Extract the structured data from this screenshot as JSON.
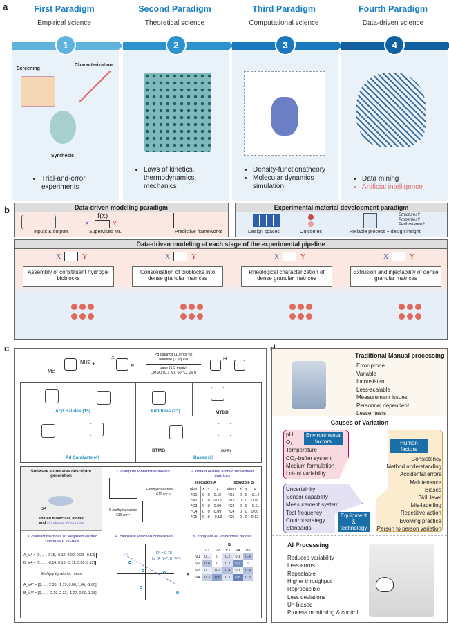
{
  "panel_a": {
    "label": "a",
    "paradigms": [
      {
        "num": "1",
        "title": "First Paradigm",
        "subtitle": "Empirical science",
        "bullets": [
          "Trial-and-error experiments"
        ],
        "illustration_labels": [
          "Screening",
          "Characterization",
          "Synthesis"
        ]
      },
      {
        "num": "2",
        "title": "Second Paradigm",
        "subtitle": "Theoretical science",
        "bullets": [
          "Laws of kinetics, thermodynamics, mechanics"
        ]
      },
      {
        "num": "3",
        "title": "Third Paradigm",
        "subtitle": "Computational science",
        "bullets": [
          "Density-functionatheory",
          "Molecular dynamics simulation"
        ]
      },
      {
        "num": "4",
        "title": "Fourth Paradigm",
        "subtitle": "Data-driven science",
        "bullets": [
          "Data mining",
          "Artificial intelligence"
        ]
      }
    ],
    "colors": {
      "band": [
        "#5fb3dd",
        "#2c93cf",
        "#1a78bd",
        "#11609f"
      ],
      "highlight": "#e07070"
    }
  },
  "panel_b": {
    "label": "b",
    "modeling": {
      "title": "Data-driven modeling paradigm",
      "fx": "f(x)",
      "x": "X",
      "y": "Y",
      "captions": [
        "Inputs & outputs",
        "Supervised ML",
        "Predictive frameworks"
      ]
    },
    "experimental": {
      "title": "Experimental material development paradigm",
      "captions": [
        "Design spaces",
        "Outcomes",
        "Reliable process + design insight"
      ],
      "questions": [
        "Structures?",
        "Properties?",
        "Performance?"
      ]
    },
    "pipeline": {
      "title": "Data-driven modeling at each stage of the experimental pipeline",
      "x": "X",
      "y": "Y",
      "stages": [
        "Assembly of constituent hydrogel bioblocks",
        "Consolidation of bioblocks into dense granular matrices",
        "Rheological characterization of dense granular matrices",
        "Extrusion and injectability of dense granular matrices"
      ]
    }
  },
  "panel_c": {
    "label": "c",
    "reaction": {
      "reagent1": "NH2",
      "reagent1_sub": "Me",
      "plus": "+",
      "reagent2": "X",
      "reagent2_r": "R",
      "conditions_top": [
        "Pd catalyst (10 mol %)",
        "additive (1 equiv)"
      ],
      "conditions_bottom": [
        "base (1.5 equiv)",
        "DMSO (0.1 M), 60 °C, 16 h"
      ],
      "product": "H"
    },
    "categories": [
      "Aryl Halides (15)",
      "Additives (23)",
      "MTBD",
      "Pd Catalysts (4)",
      "BTMG",
      "P2Et",
      "Bases (3)"
    ],
    "descriptor": {
      "title": "Software automates descriptor generation",
      "caption1": "shared molecular, atomic",
      "caption2": "and",
      "caption3": "vibrational descriptors",
      "sa": "SA"
    },
    "step1": {
      "title": "1. compute vibrational modes",
      "mol1": "3-methylisoxazole",
      "freq1": "610 cm⁻¹",
      "mol2": "5-methylisoxazole",
      "freq2": "639 cm⁻¹"
    },
    "step2": {
      "title": "2. obtain related atomic movement metrices",
      "tableA": "isoxazole A",
      "tableB": "isoxazole B",
      "headers": [
        "atom",
        "x",
        "y",
        "z"
      ],
      "rowsA": [
        [
          "*O1",
          "0",
          "0",
          "0.15"
        ],
        [
          "*N2",
          "0",
          "0",
          "-0.12"
        ],
        [
          "*C3",
          "0",
          "0",
          "0.00"
        ],
        [
          "*C4",
          "0",
          "0",
          "0.09"
        ],
        [
          "*C5",
          "0",
          "0",
          "-0.13"
        ]
      ],
      "rowsB": [
        [
          "*O1",
          "0",
          "0",
          "-0.14"
        ],
        [
          "*N2",
          "0",
          "0",
          "0.16"
        ],
        [
          "*C3",
          "0",
          "0",
          "-0.11"
        ],
        [
          "*C4",
          "0",
          "0",
          "0.00"
        ],
        [
          "*C5",
          "0",
          "0",
          "0.12"
        ]
      ]
    },
    "step3": {
      "title": "3. convert matrices to weighted atomic movement vectors",
      "vectors": [
        "A_V4 = [0, ... , 0.15, -0.12, 0.00, 0.09, -0.13]",
        "B_V4 = [0, ... , -0.14, 0.16, -0.11, 0.00, 0.12]"
      ],
      "multiply": "Multiply by atomic mass",
      "weighted": [
        "A_V4* = [0, ... , 2.38, -1.73, 0.00, 1.06, -1.60]",
        "B_V4* = [0, ... , -2.19, 2.33, -1.27, 0.00, 1.38]"
      ]
    },
    "step4": {
      "title": "4. calculate Pearson correlation",
      "r2": "R² = 0.78",
      "for": "for (A_V4*, B_V4*)"
    },
    "step5": {
      "title": "5. compare all vibrational modes",
      "col_axis": "B",
      "row_axis": "A",
      "cols": [
        "V1",
        "V2",
        "V3",
        "V4",
        "V5"
      ],
      "rows": [
        "V1",
        "V2",
        "V3",
        "V4"
      ],
      "values": [
        [
          0.1,
          0.0,
          0.2,
          0.1,
          0.4
        ],
        [
          0.4,
          0.0,
          0.2,
          0.7,
          0.0
        ],
        [
          0.1,
          0.2,
          0.4,
          0.1,
          0.4
        ],
        [
          0.3,
          0.6,
          0.2,
          0.8,
          0.3
        ]
      ]
    }
  },
  "panel_d": {
    "label": "d",
    "manual": {
      "title": "Traditional Manual processing",
      "items": [
        "Error-prone",
        "Variable",
        "Inconsistent",
        "Less-scalable",
        "Measurement issues",
        "Personnel dependent",
        "Lesser tests"
      ]
    },
    "causes": {
      "title": "Causes of Variation",
      "environmental": {
        "tag": "Environmental factors",
        "items": [
          "pH",
          "O₂",
          "Temperature",
          "CO₂-buffer system",
          "Medium formulation",
          "Lot-lot variability"
        ]
      },
      "human": {
        "tag": "Human factors",
        "items": [
          "Consistency",
          "Method understanding",
          "Accidental errors",
          "Maintenance",
          "Biases",
          "Skill level",
          "Mis-labelling",
          "Repetitive action",
          "Evolving practice",
          "Person to person variation"
        ]
      },
      "equipment": {
        "tag": "Equipment & technology",
        "items": [
          "Uncertainity",
          "Sensor capability",
          "Measurement system",
          "Test frequency",
          "Control strategy",
          "Standards"
        ]
      }
    },
    "ai": {
      "title": "AI Processing",
      "items": [
        "Reduced variability",
        "Less errors",
        "Repeatable",
        "Higher throughput",
        "Reproducible",
        "Less deviations",
        "Un-biased",
        "Process monitoring & control"
      ]
    }
  }
}
